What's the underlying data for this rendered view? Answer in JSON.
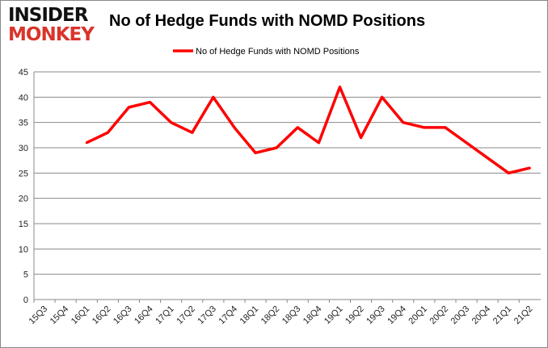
{
  "logo": {
    "line1": "INSIDER",
    "line2": "MONKEY"
  },
  "chart_data": {
    "type": "line",
    "title": "No of Hedge Funds with NOMD Positions",
    "categories": [
      "15Q3",
      "15Q4",
      "16Q1",
      "16Q2",
      "16Q3",
      "16Q4",
      "17Q1",
      "17Q2",
      "17Q3",
      "17Q4",
      "18Q1",
      "18Q2",
      "18Q3",
      "18Q4",
      "19Q1",
      "19Q2",
      "19Q3",
      "19Q4",
      "20Q1",
      "20Q2",
      "20Q3",
      "20Q4",
      "21Q1",
      "21Q2"
    ],
    "series": [
      {
        "name": "No of Hedge Funds with NOMD Positions",
        "color": "#ff0000",
        "values": [
          null,
          null,
          31,
          33,
          38,
          39,
          35,
          33,
          40,
          34,
          29,
          30,
          34,
          31,
          42,
          32,
          40,
          35,
          34,
          34,
          31,
          28,
          25,
          26
        ]
      }
    ],
    "ylim": [
      0,
      45
    ],
    "yticks": [
      0,
      5,
      10,
      15,
      20,
      25,
      30,
      35,
      40,
      45
    ],
    "grid": true,
    "legend": "top-center"
  }
}
